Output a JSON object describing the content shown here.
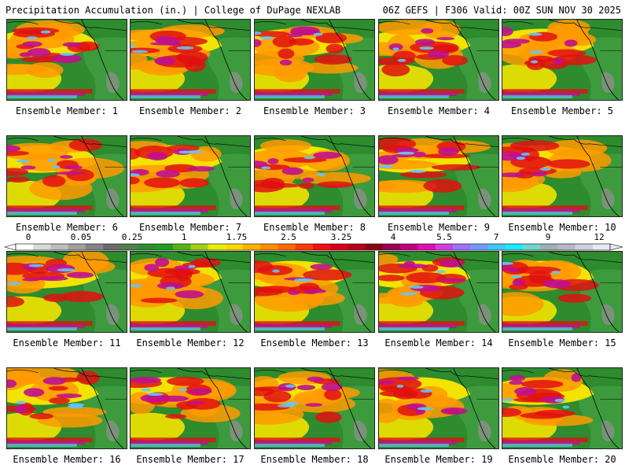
{
  "header": {
    "left_title": "Precipitation Accumulation (in.) | College of DuPage NEXLAB",
    "right_title": "06Z GEFS | F306 Valid: 00Z SUN NOV 30 2025"
  },
  "panels": [
    {
      "label": "Ensemble Member: 1"
    },
    {
      "label": "Ensemble Member: 2"
    },
    {
      "label": "Ensemble Member: 3"
    },
    {
      "label": "Ensemble Member: 4"
    },
    {
      "label": "Ensemble Member: 5"
    },
    {
      "label": "Ensemble Member: 6"
    },
    {
      "label": "Ensemble Member: 7"
    },
    {
      "label": "Ensemble Member: 8"
    },
    {
      "label": "Ensemble Member: 9"
    },
    {
      "label": "Ensemble Member: 10"
    },
    {
      "label": "Ensemble Member: 11"
    },
    {
      "label": "Ensemble Member: 12"
    },
    {
      "label": "Ensemble Member: 13"
    },
    {
      "label": "Ensemble Member: 14"
    },
    {
      "label": "Ensemble Member: 15"
    },
    {
      "label": "Ensemble Member: 16"
    },
    {
      "label": "Ensemble Member: 17"
    },
    {
      "label": "Ensemble Member: 18"
    },
    {
      "label": "Ensemble Member: 19"
    },
    {
      "label": "Ensemble Member: 20"
    }
  ],
  "colorbar": {
    "tick_labels": [
      "0",
      "0.05",
      "0.25",
      "1",
      "1.75",
      "2.5",
      "3.25",
      "4",
      "5.5",
      "7",
      "9",
      "12"
    ],
    "colors": [
      "#ffffff",
      "#d9d9d9",
      "#bdbdbd",
      "#a0a0a0",
      "#858585",
      "#6b6b6b",
      "#4f7f4f",
      "#2f8f2f",
      "#1f9e1f",
      "#58b31a",
      "#9fd11a",
      "#e6f000",
      "#ffd800",
      "#ffb000",
      "#ff8c00",
      "#ff6a00",
      "#ff3a00",
      "#f21010",
      "#d80018",
      "#b8001a",
      "#8a0012",
      "#9b0057",
      "#c2007f",
      "#e010b0",
      "#d040e0",
      "#a070ff",
      "#6f9bff",
      "#40c8ff",
      "#20e8ff",
      "#6fd6cf",
      "#9fb0b0",
      "#b8b8c8",
      "#d0d0e0",
      "#e8e8f0"
    ]
  },
  "colors": {
    "land_green": "#2e8b2e",
    "ocean_dark": "#1f6f1f",
    "precip_yellow": "#f2e300",
    "precip_orange": "#ff9a00",
    "precip_red": "#e01010",
    "precip_magenta": "#c0108f",
    "precip_cyan": "#60c8ff"
  }
}
